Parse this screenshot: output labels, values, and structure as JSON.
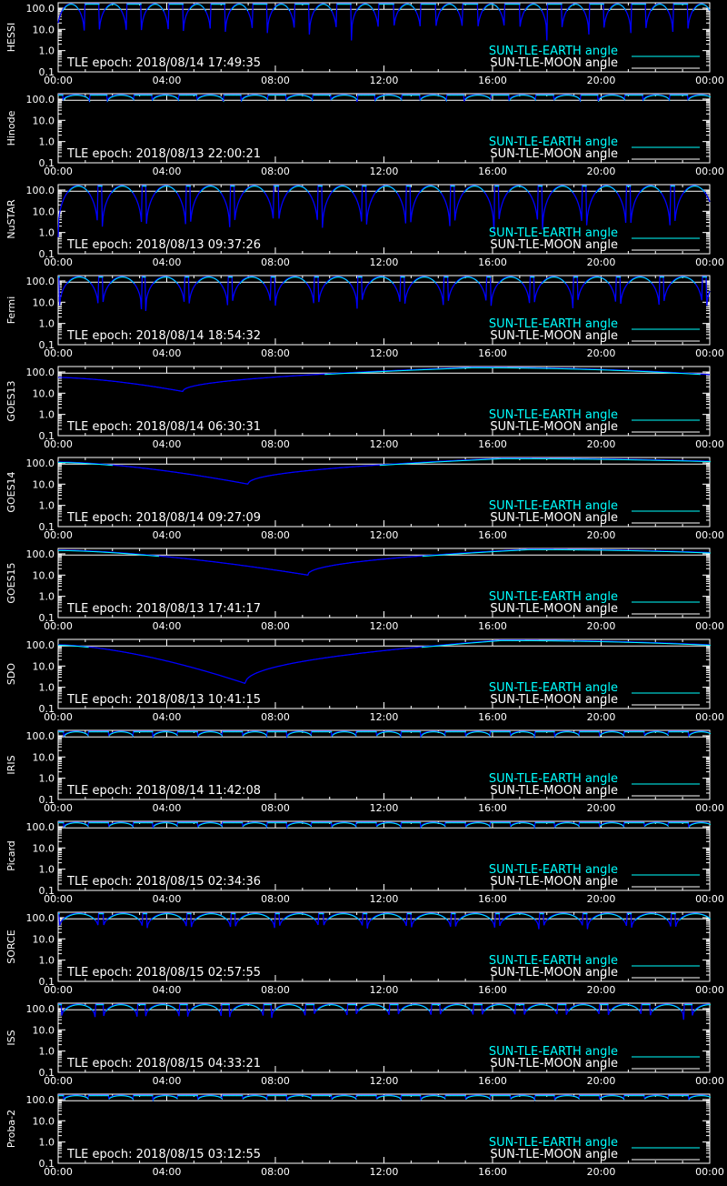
{
  "colors": {
    "background": "#000000",
    "axes": "#ffffff",
    "earth": "#00ffff",
    "moon": "#ffffff",
    "dip": "#0000ff"
  },
  "chart_data": {
    "type": "line",
    "xaxis": {
      "ticks": [
        "00:00",
        "04:00",
        "08:00",
        "12:00",
        "16:00",
        "20:00",
        "00:00"
      ],
      "range_hours": [
        0,
        24
      ]
    },
    "yaxis": {
      "scale": "log",
      "range": [
        0.1,
        180
      ],
      "ticks": [
        "0.1",
        "1.0",
        "10.0",
        "100.0"
      ]
    },
    "legend": {
      "placement": "bottom-right",
      "entries": [
        "SUN-TLE-EARTH angle",
        "SUN-TLE-MOON angle"
      ]
    },
    "moon_angle_deg": 88,
    "panels": [
      {
        "name": "HESSI",
        "epoch": "TLE epoch: 2018/08/14 17:49:35",
        "profile": "orbit",
        "orbits": 15.5,
        "phase": 0.2,
        "dip_min": 3.0,
        "flat": 0.35
      },
      {
        "name": "Hinode",
        "epoch": "TLE epoch: 2018/08/13 22:00:21",
        "profile": "orbit",
        "orbits": 14.6,
        "phase": 0.1,
        "dip_min": 70.0,
        "flat": 0.4
      },
      {
        "name": "NuSTAR",
        "epoch": "TLE epoch: 2018/08/13 09:37:26",
        "profile": "orbit",
        "orbits": 14.8,
        "phase": 0.05,
        "dip_min": 0.6,
        "flat": 0.1
      },
      {
        "name": "Fermi",
        "epoch": "TLE epoch: 2018/08/14 18:54:32",
        "profile": "orbit",
        "orbits": 15.1,
        "phase": 0.02,
        "dip_min": 3.0,
        "flat": 0.1
      },
      {
        "name": "GOES13",
        "epoch": "TLE epoch: 2018/08/14 06:30:31",
        "profile": "geo",
        "dip_hour": 4.6,
        "dip_min": 12.0,
        "start": 55,
        "end": 75
      },
      {
        "name": "GOES14",
        "epoch": "TLE epoch: 2018/08/14 09:27:09",
        "profile": "geo",
        "dip_hour": 7.0,
        "dip_min": 10.0,
        "start": 110,
        "end": 120
      },
      {
        "name": "GOES15",
        "epoch": "TLE epoch: 2018/08/13 17:41:17",
        "profile": "geo",
        "dip_hour": 9.2,
        "dip_min": 10.0,
        "start": 150,
        "end": 115
      },
      {
        "name": "SDO",
        "epoch": "TLE epoch: 2018/08/13 10:41:15",
        "profile": "geo",
        "dip_hour": 6.9,
        "dip_min": 1.5,
        "start": 100,
        "end": 100
      },
      {
        "name": "IRIS",
        "epoch": "TLE epoch: 2018/08/14 11:42:08",
        "profile": "orbit",
        "orbits": 14.6,
        "phase": 0.1,
        "dip_min": 82.0,
        "flat": 0.45
      },
      {
        "name": "Picard",
        "epoch": "TLE epoch: 2018/08/15 02:34:36",
        "profile": "orbit",
        "orbits": 14.6,
        "phase": 0.1,
        "dip_min": 85.0,
        "flat": 0.45
      },
      {
        "name": "SORCE",
        "epoch": "TLE epoch: 2018/08/15 02:57:55",
        "profile": "orbit",
        "orbits": 14.8,
        "phase": 0.03,
        "dip_min": 22.0,
        "flat": 0.1
      },
      {
        "name": "ISS",
        "epoch": "TLE epoch: 2018/08/15 04:33:21",
        "profile": "orbit",
        "orbits": 15.5,
        "phase": 0.02,
        "dip_min": 30.0,
        "flat": 0.2
      },
      {
        "name": "Proba-2",
        "epoch": "TLE epoch: 2018/08/15 03:12:55",
        "profile": "orbit",
        "orbits": 14.6,
        "phase": 0.1,
        "dip_min": 92.0,
        "flat": 0.45
      }
    ]
  }
}
